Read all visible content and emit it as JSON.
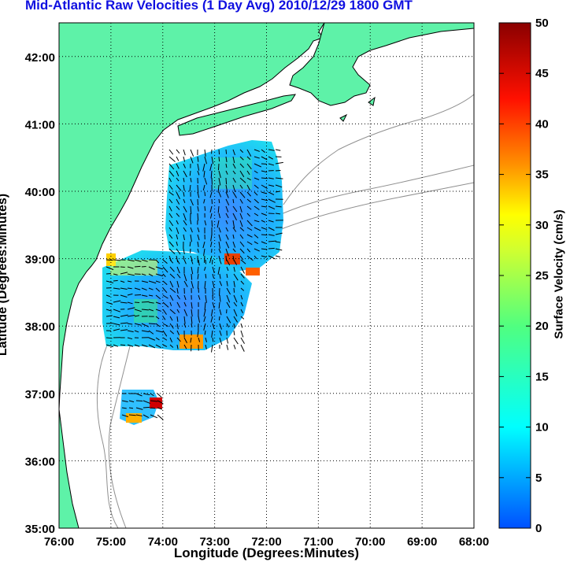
{
  "title": "Mid-Atlantic Raw Velocities (1 Day Avg) 2010/12/29 1800 GMT",
  "xlabel": "Longitude (Degrees:Minutes)",
  "ylabel": "Latitude (Degrees:Minutes)",
  "colorbar": {
    "label": "Surface Velocity (cm/s)",
    "ticks": [
      "0",
      "5",
      "10",
      "15",
      "20",
      "25",
      "30",
      "35",
      "40",
      "45",
      "50"
    ],
    "range": [
      0,
      50
    ]
  },
  "axes": {
    "x_ticks": [
      "76:00",
      "75:00",
      "74:00",
      "73:00",
      "72:00",
      "71:00",
      "70:00",
      "69:00",
      "68:00"
    ],
    "y_ticks": [
      "35:00",
      "36:00",
      "37:00",
      "38:00",
      "39:00",
      "40:00",
      "41:00",
      "42:00"
    ],
    "lon_range": [
      -76,
      -68
    ],
    "lat_range": [
      35,
      42.5
    ],
    "grid": "dotted"
  },
  "colors": {
    "land": "#5ef2a8",
    "title": "#1010e0",
    "coast": "#000000",
    "bathymetry": "#909090"
  }
}
